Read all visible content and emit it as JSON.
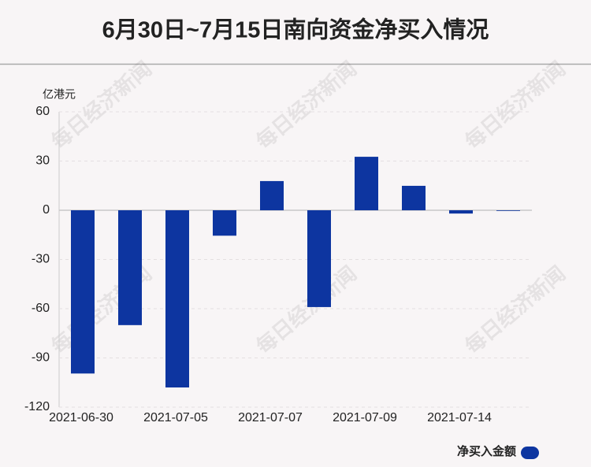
{
  "chart_data": {
    "type": "bar",
    "title": "6月30日~7月15日南向资金净买入情况",
    "y_axis_label": "亿港元",
    "watermark": "每日经济新闻",
    "categories": [
      "2021-06-30",
      null,
      "2021-07-05",
      null,
      "2021-07-07",
      null,
      "2021-07-09",
      null,
      "2021-07-14",
      null
    ],
    "series": [
      {
        "name": "净买入金额",
        "color": "#0d35a0",
        "values": [
          -99.5,
          -70,
          -108,
          -15.5,
          17.8,
          -59,
          32.6,
          14.9,
          -2,
          -0.3
        ]
      }
    ],
    "ylim": [
      -120,
      60
    ],
    "yticks": [
      -120,
      -90,
      -60,
      -30,
      0,
      30,
      60
    ],
    "grid": true
  }
}
